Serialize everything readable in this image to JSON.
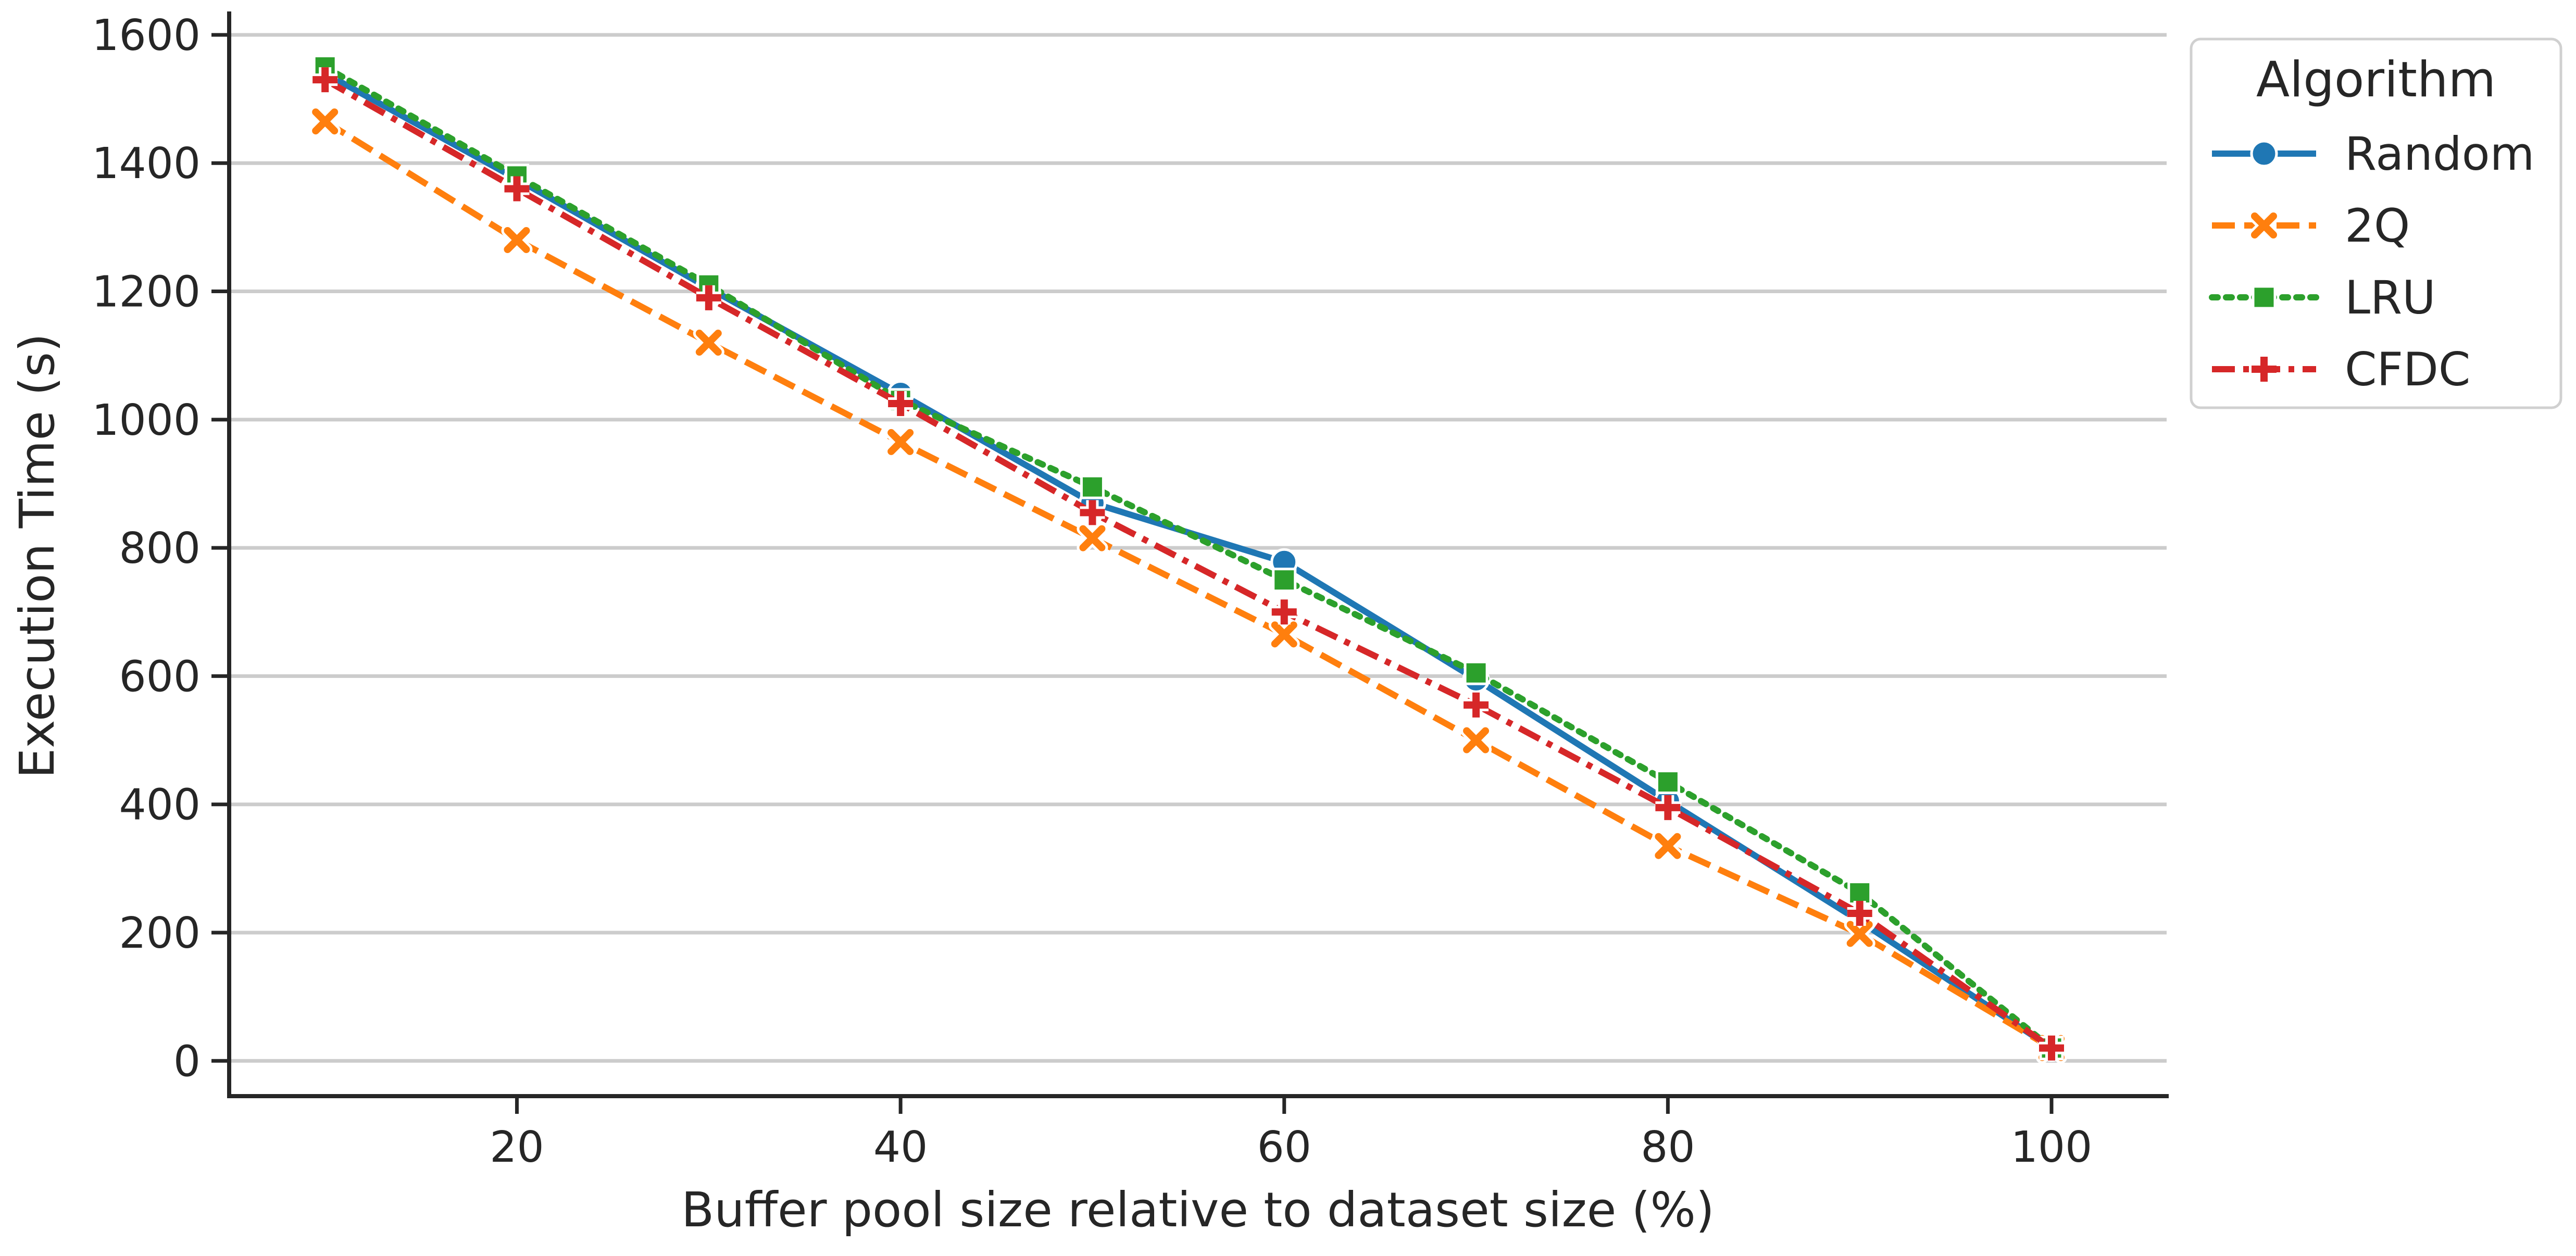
{
  "chart_data": {
    "type": "line",
    "title": "",
    "xlabel": "Buffer pool size relative to dataset size (%)",
    "ylabel": "Execution Time (s)",
    "x": [
      10,
      20,
      30,
      40,
      50,
      60,
      70,
      80,
      90,
      100
    ],
    "xticks": [
      20,
      40,
      60,
      80,
      100
    ],
    "yticks": [
      0,
      200,
      400,
      600,
      800,
      1000,
      1200,
      1400,
      1600
    ],
    "xlim": [
      5,
      106
    ],
    "ylim": [
      -55,
      1630
    ],
    "grid": "horizontal",
    "legend": {
      "title": "Algorithm",
      "placement": "outside-top-right"
    },
    "series": [
      {
        "name": "Random",
        "color": "#1f77b4",
        "dash": "solid",
        "marker": "circle",
        "values": [
          1540,
          1375,
          1205,
          1040,
          870,
          778,
          595,
          405,
          218,
          20
        ]
      },
      {
        "name": "2Q",
        "color": "#ff7f0e",
        "dash": "dashed",
        "marker": "x",
        "values": [
          1465,
          1280,
          1120,
          965,
          815,
          665,
          500,
          335,
          198,
          20
        ]
      },
      {
        "name": "LRU",
        "color": "#2ca02c",
        "dash": "dotted",
        "marker": "square",
        "values": [
          1550,
          1380,
          1210,
          1030,
          895,
          750,
          605,
          435,
          262,
          20
        ]
      },
      {
        "name": "CFDC",
        "color": "#d62728",
        "dash": "dashdot",
        "marker": "plus",
        "values": [
          1530,
          1360,
          1190,
          1025,
          855,
          700,
          555,
          395,
          230,
          20
        ]
      }
    ]
  }
}
